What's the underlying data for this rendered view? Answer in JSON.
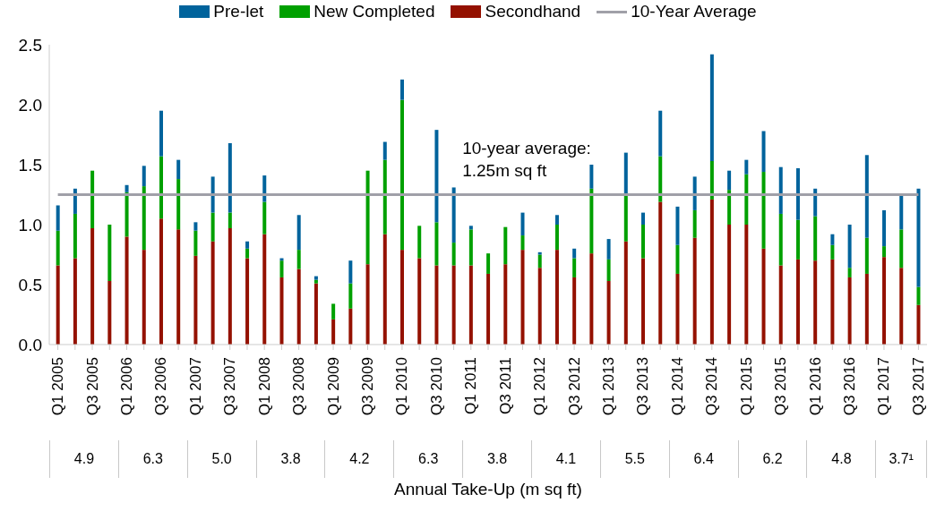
{
  "chart_data": {
    "type": "bar",
    "stacked": true,
    "categories": [
      "Q1 2005",
      null,
      "Q3 2005",
      null,
      "Q1 2006",
      null,
      "Q3 2006",
      null,
      "Q1 2007",
      null,
      "Q3 2007",
      null,
      "Q1 2008",
      null,
      "Q3 2008",
      null,
      "Q1 2009",
      null,
      "Q3 2009",
      null,
      "Q1 2010",
      null,
      "Q3 2010",
      null,
      "Q1 2011",
      null,
      "Q3 2011",
      null,
      "Q1 2012",
      null,
      "Q3 2012",
      null,
      "Q1 2013",
      null,
      "Q3 2013",
      null,
      "Q1 2014",
      null,
      "Q3 2014",
      null,
      "Q1 2015",
      null,
      "Q3 2015",
      null,
      "Q1 2016",
      null,
      "Q3 2016",
      null,
      "Q1 2017",
      null,
      "Q3 2017"
    ],
    "series": [
      {
        "name": "Secondhand",
        "color": "#941100",
        "values": [
          0.66,
          0.72,
          0.97,
          0.53,
          0.9,
          0.79,
          1.05,
          0.96,
          0.74,
          0.86,
          0.97,
          0.72,
          0.92,
          0.56,
          0.63,
          0.51,
          0.21,
          0.3,
          0.67,
          0.92,
          0.79,
          0.72,
          0.66,
          0.66,
          0.66,
          0.59,
          0.67,
          0.79,
          0.64,
          0.79,
          0.56,
          0.76,
          0.53,
          0.86,
          0.72,
          1.19,
          0.59,
          0.89,
          1.21,
          1.0,
          1.0,
          0.8,
          0.66,
          0.71,
          0.7,
          0.71,
          0.56,
          0.59,
          0.73,
          0.64,
          0.33
        ]
      },
      {
        "name": "New Completed",
        "color": "#00a000",
        "values": [
          0.29,
          0.37,
          0.48,
          0.47,
          0.37,
          0.53,
          0.52,
          0.42,
          0.21,
          0.24,
          0.13,
          0.08,
          0.27,
          0.14,
          0.16,
          0.03,
          0.13,
          0.21,
          0.78,
          0.62,
          1.25,
          0.27,
          0.36,
          0.19,
          0.3,
          0.17,
          0.31,
          0.12,
          0.11,
          0.21,
          0.16,
          0.54,
          0.18,
          0.38,
          0.28,
          0.38,
          0.24,
          0.23,
          0.32,
          0.29,
          0.42,
          0.64,
          0.43,
          0.33,
          0.37,
          0.12,
          0.08,
          0.3,
          0.09,
          0.32,
          0.15
        ]
      },
      {
        "name": "Pre-let",
        "color": "#00639c",
        "values": [
          0.21,
          0.21,
          0,
          0,
          0.06,
          0.17,
          0.38,
          0.16,
          0.07,
          0.3,
          0.58,
          0.06,
          0.22,
          0.02,
          0.29,
          0.03,
          0,
          0.19,
          0,
          0.15,
          0.17,
          0,
          0.77,
          0.46,
          0.03,
          0,
          0,
          0.19,
          0.02,
          0.08,
          0.08,
          0.2,
          0.17,
          0.36,
          0.1,
          0.38,
          0.32,
          0.28,
          0.89,
          0.16,
          0.12,
          0.34,
          0.39,
          0.43,
          0.23,
          0.09,
          0.36,
          0.69,
          0.3,
          0.28,
          0.82
        ]
      },
      {
        "name": "10-Year Average",
        "type": "line",
        "color": "#a0a0a8",
        "values": [
          1.25,
          1.25,
          1.25,
          1.25,
          1.25,
          1.25,
          1.25,
          1.25,
          1.25,
          1.25,
          1.25,
          1.25,
          1.25,
          1.25,
          1.25,
          1.25,
          1.25,
          1.25,
          1.25,
          1.25,
          1.25,
          1.25,
          1.25,
          1.25,
          1.25,
          1.25,
          1.25,
          1.25,
          1.25,
          1.25,
          1.25,
          1.25,
          1.25,
          1.25,
          1.25,
          1.25,
          1.25,
          1.25,
          1.25,
          1.25,
          1.25,
          1.25,
          1.25,
          1.25,
          1.25,
          1.25,
          1.25,
          1.25,
          1.25,
          1.25,
          1.25
        ]
      }
    ],
    "ylim": [
      0,
      2.5
    ],
    "yticks": [
      {
        "value": 0,
        "label": "0.0"
      },
      0.5,
      {
        "value": 1,
        "label": "1.0"
      },
      1.5,
      {
        "value": 2,
        "label": "2.0"
      },
      2.5
    ],
    "xlabel": "Annual Take-Up (m sq ft)",
    "legend": "top",
    "marker": "none",
    "annotations": [
      {
        "text": "10-year average:\n1.25m sq ft",
        "x": "Q1 2011",
        "y": 1.25
      },
      "4.9",
      "6.3",
      "5.0",
      "3.8",
      "4.2",
      "6.3",
      "3.8",
      "4.1",
      "5.5",
      "6.4",
      "6.2",
      "4.8",
      "3.7¹"
    ]
  }
}
